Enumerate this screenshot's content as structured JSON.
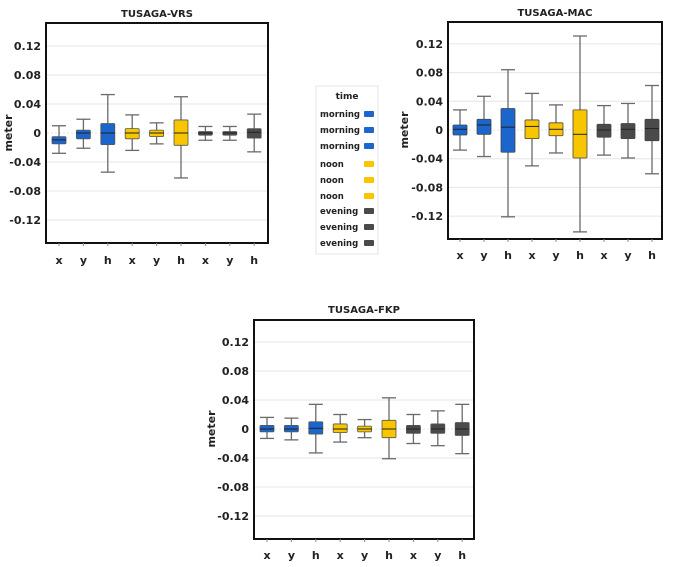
{
  "chart_data": [
    {
      "type": "box",
      "title": "TUSAGA-VRS",
      "xlabel": "",
      "ylabel": "meter",
      "ylim": [
        -0.15,
        0.15
      ],
      "yticks": [
        0.12,
        0.08,
        0.04,
        0,
        -0.04,
        -0.08,
        -0.12
      ],
      "ytick_labels": [
        "0.12",
        "0.08",
        "0.04",
        "0",
        "-0.04",
        "-0.08",
        "-0.12"
      ],
      "grid": true,
      "categories": [
        "x",
        "y",
        "h",
        "x",
        "y",
        "h",
        "x",
        "y",
        "h"
      ],
      "groups": [
        "morning",
        "morning",
        "morning",
        "noon",
        "noon",
        "noon",
        "evening",
        "evening",
        "evening"
      ],
      "boxes": [
        {
          "min": -0.028,
          "q1": -0.015,
          "median": -0.0095,
          "q3": -0.005,
          "max": 0.01
        },
        {
          "min": -0.021,
          "q1": -0.008,
          "median": 0.0,
          "q3": 0.004,
          "max": 0.019
        },
        {
          "min": -0.054,
          "q1": -0.016,
          "median": 0.0,
          "q3": 0.013,
          "max": 0.053
        },
        {
          "min": -0.024,
          "q1": -0.008,
          "median": 0.0,
          "q3": 0.006,
          "max": 0.025
        },
        {
          "min": -0.015,
          "q1": -0.005,
          "median": 0.0,
          "q3": 0.004,
          "max": 0.014
        },
        {
          "min": -0.062,
          "q1": -0.017,
          "median": 0.0,
          "q3": 0.018,
          "max": 0.05
        },
        {
          "min": -0.01,
          "q1": -0.003,
          "median": 0.0,
          "q3": 0.002,
          "max": 0.009
        },
        {
          "min": -0.01,
          "q1": -0.003,
          "median": 0.0,
          "q3": 0.002,
          "max": 0.009
        },
        {
          "min": -0.026,
          "q1": -0.007,
          "median": 0.001,
          "q3": 0.006,
          "max": 0.026
        }
      ]
    },
    {
      "type": "box",
      "title": "TUSAGA-MAC",
      "xlabel": "",
      "ylabel": "meter",
      "ylim": [
        -0.15,
        0.15
      ],
      "yticks": [
        0.12,
        0.08,
        0.04,
        0,
        -0.04,
        -0.08,
        -0.12
      ],
      "ytick_labels": [
        "0.12",
        "0.08",
        "0.04",
        "0",
        "-0.04",
        "-0.08",
        "-0.12"
      ],
      "grid": true,
      "categories": [
        "x",
        "y",
        "h",
        "x",
        "y",
        "h",
        "x",
        "y",
        "h"
      ],
      "groups": [
        "morning",
        "morning",
        "morning",
        "noon",
        "noon",
        "noon",
        "evening",
        "evening",
        "evening"
      ],
      "boxes": [
        {
          "min": -0.028,
          "q1": -0.007,
          "median": 0.001,
          "q3": 0.007,
          "max": 0.028
        },
        {
          "min": -0.037,
          "q1": -0.006,
          "median": 0.007,
          "q3": 0.015,
          "max": 0.047
        },
        {
          "min": -0.121,
          "q1": -0.031,
          "median": 0.004,
          "q3": 0.03,
          "max": 0.084
        },
        {
          "min": -0.05,
          "q1": -0.012,
          "median": 0.005,
          "q3": 0.014,
          "max": 0.051
        },
        {
          "min": -0.032,
          "q1": -0.008,
          "median": 0.001,
          "q3": 0.01,
          "max": 0.035
        },
        {
          "min": -0.142,
          "q1": -0.039,
          "median": -0.006,
          "q3": 0.028,
          "max": 0.131
        },
        {
          "min": -0.035,
          "q1": -0.01,
          "median": 0.0,
          "q3": 0.008,
          "max": 0.034
        },
        {
          "min": -0.039,
          "q1": -0.012,
          "median": 0.001,
          "q3": 0.009,
          "max": 0.037
        },
        {
          "min": -0.061,
          "q1": -0.015,
          "median": 0.002,
          "q3": 0.015,
          "max": 0.062
        }
      ]
    },
    {
      "type": "box",
      "title": "TUSAGA-FKP",
      "xlabel": "",
      "ylabel": "meter",
      "ylim": [
        -0.15,
        0.15
      ],
      "yticks": [
        0.12,
        0.08,
        0.04,
        0,
        -0.04,
        -0.08,
        -0.12
      ],
      "ytick_labels": [
        "0.12",
        "0.08",
        "0.04",
        "0",
        "-0.04",
        "-0.08",
        "-0.12"
      ],
      "grid": true,
      "categories": [
        "x",
        "y",
        "h",
        "x",
        "y",
        "h",
        "x",
        "y",
        "h"
      ],
      "groups": [
        "morning",
        "morning",
        "morning",
        "noon",
        "noon",
        "noon",
        "evening",
        "evening",
        "evening"
      ],
      "boxes": [
        {
          "min": -0.013,
          "q1": -0.004,
          "median": 0.0,
          "q3": 0.005,
          "max": 0.016
        },
        {
          "min": -0.015,
          "q1": -0.004,
          "median": 0.0,
          "q3": 0.005,
          "max": 0.015
        },
        {
          "min": -0.033,
          "q1": -0.007,
          "median": 0.001,
          "q3": 0.01,
          "max": 0.034
        },
        {
          "min": -0.018,
          "q1": -0.005,
          "median": 0.0,
          "q3": 0.007,
          "max": 0.02
        },
        {
          "min": -0.012,
          "q1": -0.004,
          "median": 0.0,
          "q3": 0.004,
          "max": 0.013
        },
        {
          "min": -0.041,
          "q1": -0.012,
          "median": 0.0,
          "q3": 0.012,
          "max": 0.043
        },
        {
          "min": -0.02,
          "q1": -0.006,
          "median": 0.0,
          "q3": 0.005,
          "max": 0.02
        },
        {
          "min": -0.023,
          "q1": -0.006,
          "median": 0.0,
          "q3": 0.007,
          "max": 0.025
        },
        {
          "min": -0.034,
          "q1": -0.009,
          "median": 0.0,
          "q3": 0.009,
          "max": 0.034
        }
      ]
    }
  ],
  "legend": {
    "title": "time",
    "placement": "center",
    "items": [
      {
        "label": "morning",
        "color": "#1a66cc"
      },
      {
        "label": "morning",
        "color": "#1a66cc"
      },
      {
        "label": "morning",
        "color": "#1a66cc"
      },
      {
        "label": "noon",
        "color": "#f7c600"
      },
      {
        "label": "noon",
        "color": "#f7c600"
      },
      {
        "label": "noon",
        "color": "#f7c600"
      },
      {
        "label": "evening",
        "color": "#4a4a4a"
      },
      {
        "label": "evening",
        "color": "#4a4a4a"
      },
      {
        "label": "evening",
        "color": "#4a4a4a"
      }
    ]
  },
  "colors": {
    "morning": "#1a66cc",
    "noon": "#f7c600",
    "evening": "#4a4a4a",
    "whisker": "#6a6a6a",
    "grid": "#e6e6e6",
    "frame": "#111111"
  }
}
